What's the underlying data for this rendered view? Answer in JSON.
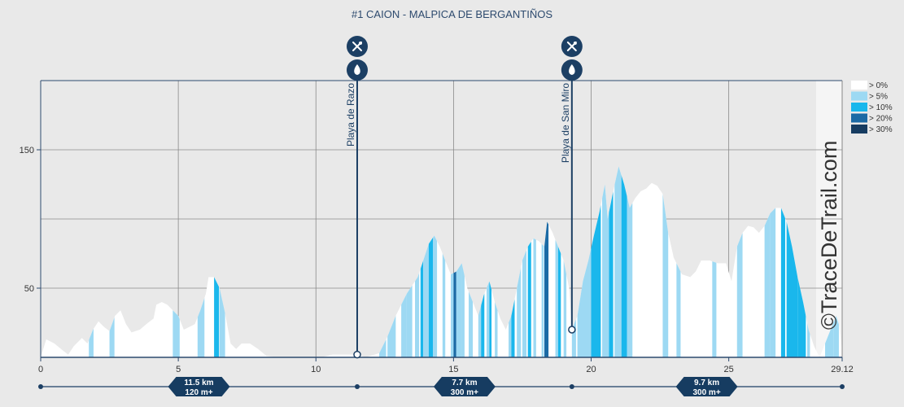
{
  "chart_data": {
    "type": "area",
    "title": "#1 CAION - MALPICA DE BERGANTIÑOS",
    "xlabel": "",
    "ylabel": "",
    "xlim": [
      0,
      29.12
    ],
    "ylim": [
      0,
      200
    ],
    "x_ticks": [
      {
        "value": 0,
        "label": "0"
      },
      {
        "value": 5,
        "label": "5"
      },
      {
        "value": 10,
        "label": "10"
      },
      {
        "value": 15,
        "label": "15"
      },
      {
        "value": 20,
        "label": "20"
      },
      {
        "value": 25,
        "label": "25"
      },
      {
        "value": 29.12,
        "label": "29.12"
      }
    ],
    "y_ticks": [
      {
        "value": 50,
        "label": "50"
      },
      {
        "value": 150,
        "label": "150"
      }
    ],
    "grid": true,
    "profile": [
      [
        0,
        0
      ],
      [
        0.2,
        13
      ],
      [
        0.5,
        10
      ],
      [
        0.8,
        5
      ],
      [
        1.0,
        2
      ],
      [
        1.2,
        8
      ],
      [
        1.5,
        14
      ],
      [
        1.7,
        10
      ],
      [
        1.9,
        20
      ],
      [
        2.1,
        26
      ],
      [
        2.3,
        22
      ],
      [
        2.5,
        19
      ],
      [
        2.7,
        30
      ],
      [
        2.9,
        34
      ],
      [
        3.1,
        24
      ],
      [
        3.3,
        18
      ],
      [
        3.6,
        20
      ],
      [
        3.9,
        25
      ],
      [
        4.1,
        28
      ],
      [
        4.2,
        38
      ],
      [
        4.4,
        40
      ],
      [
        4.6,
        38
      ],
      [
        4.8,
        34
      ],
      [
        5.0,
        30
      ],
      [
        5.2,
        20
      ],
      [
        5.4,
        22
      ],
      [
        5.6,
        24
      ],
      [
        5.8,
        34
      ],
      [
        6.0,
        46
      ],
      [
        6.1,
        58
      ],
      [
        6.3,
        58
      ],
      [
        6.5,
        50
      ],
      [
        6.7,
        32
      ],
      [
        6.9,
        10
      ],
      [
        7.1,
        6
      ],
      [
        7.3,
        10
      ],
      [
        7.6,
        10
      ],
      [
        7.9,
        6
      ],
      [
        8.2,
        1
      ],
      [
        8.6,
        0
      ],
      [
        9.5,
        0
      ],
      [
        10.2,
        0
      ],
      [
        10.6,
        2
      ],
      [
        11.0,
        2
      ],
      [
        11.5,
        2
      ],
      [
        11.8,
        0
      ],
      [
        12.3,
        3
      ],
      [
        12.6,
        15
      ],
      [
        12.9,
        30
      ],
      [
        13.1,
        38
      ],
      [
        13.3,
        46
      ],
      [
        13.5,
        52
      ],
      [
        13.7,
        58
      ],
      [
        13.9,
        70
      ],
      [
        14.1,
        82
      ],
      [
        14.3,
        88
      ],
      [
        14.5,
        80
      ],
      [
        14.7,
        70
      ],
      [
        14.9,
        60
      ],
      [
        15.1,
        62
      ],
      [
        15.3,
        68
      ],
      [
        15.5,
        50
      ],
      [
        15.7,
        40
      ],
      [
        15.9,
        30
      ],
      [
        16.1,
        45
      ],
      [
        16.3,
        55
      ],
      [
        16.5,
        40
      ],
      [
        16.7,
        28
      ],
      [
        16.9,
        20
      ],
      [
        17.1,
        30
      ],
      [
        17.3,
        50
      ],
      [
        17.5,
        70
      ],
      [
        17.7,
        80
      ],
      [
        17.9,
        86
      ],
      [
        18.1,
        84
      ],
      [
        18.3,
        80
      ],
      [
        18.4,
        98
      ],
      [
        18.6,
        90
      ],
      [
        18.8,
        80
      ],
      [
        19.0,
        70
      ],
      [
        19.2,
        50
      ],
      [
        19.3,
        20
      ],
      [
        19.5,
        30
      ],
      [
        19.7,
        55
      ],
      [
        19.9,
        70
      ],
      [
        20.1,
        88
      ],
      [
        20.3,
        105
      ],
      [
        20.5,
        125
      ],
      [
        20.6,
        100
      ],
      [
        20.8,
        120
      ],
      [
        21.0,
        138
      ],
      [
        21.2,
        125
      ],
      [
        21.4,
        108
      ],
      [
        21.6,
        115
      ],
      [
        21.8,
        120
      ],
      [
        22.0,
        122
      ],
      [
        22.2,
        126
      ],
      [
        22.4,
        124
      ],
      [
        22.6,
        118
      ],
      [
        22.8,
        90
      ],
      [
        23.0,
        72
      ],
      [
        23.3,
        60
      ],
      [
        23.6,
        58
      ],
      [
        23.8,
        62
      ],
      [
        24.0,
        70
      ],
      [
        24.3,
        70
      ],
      [
        24.6,
        68
      ],
      [
        24.9,
        68
      ],
      [
        25.1,
        55
      ],
      [
        25.3,
        80
      ],
      [
        25.5,
        90
      ],
      [
        25.7,
        95
      ],
      [
        25.9,
        94
      ],
      [
        26.1,
        90
      ],
      [
        26.3,
        95
      ],
      [
        26.5,
        104
      ],
      [
        26.7,
        108
      ],
      [
        26.9,
        108
      ],
      [
        27.1,
        98
      ],
      [
        27.3,
        80
      ],
      [
        27.5,
        58
      ],
      [
        27.7,
        40
      ],
      [
        27.9,
        20
      ],
      [
        28.1,
        8
      ],
      [
        28.3,
        0
      ],
      [
        28.5,
        10
      ],
      [
        28.7,
        20
      ],
      [
        28.9,
        30
      ],
      [
        29.0,
        24
      ],
      [
        29.12,
        5
      ]
    ],
    "gradient_classes": [
      {
        "label": "> 0%",
        "color": "#ffffff"
      },
      {
        "label": "> 5%",
        "color": "#9dd9f3"
      },
      {
        "label": "> 10%",
        "color": "#1ab7ec"
      },
      {
        "label": "> 20%",
        "color": "#1b6aa5"
      },
      {
        "label": "> 30%",
        "color": "#163c61"
      }
    ],
    "bands": [
      [
        1.75,
        1.92,
        1
      ],
      [
        2.5,
        2.68,
        1
      ],
      [
        4.8,
        5.05,
        1
      ],
      [
        5.7,
        5.95,
        1
      ],
      [
        6.3,
        6.48,
        2
      ],
      [
        6.5,
        6.7,
        1
      ],
      [
        12.3,
        12.55,
        1
      ],
      [
        12.6,
        12.9,
        1
      ],
      [
        13.1,
        13.3,
        1
      ],
      [
        13.3,
        13.5,
        1
      ],
      [
        13.6,
        13.75,
        1
      ],
      [
        13.8,
        13.9,
        2
      ],
      [
        13.9,
        14.1,
        1
      ],
      [
        14.1,
        14.25,
        2
      ],
      [
        14.25,
        14.4,
        1
      ],
      [
        14.6,
        14.7,
        1
      ],
      [
        14.9,
        15.0,
        1
      ],
      [
        15.0,
        15.1,
        3
      ],
      [
        15.1,
        15.3,
        1
      ],
      [
        15.3,
        15.4,
        1
      ],
      [
        15.55,
        15.7,
        1
      ],
      [
        15.9,
        16.0,
        1
      ],
      [
        16.0,
        16.12,
        2
      ],
      [
        16.2,
        16.3,
        1
      ],
      [
        16.3,
        16.38,
        2
      ],
      [
        16.5,
        16.6,
        1
      ],
      [
        17.0,
        17.1,
        1
      ],
      [
        17.1,
        17.22,
        2
      ],
      [
        17.3,
        17.45,
        1
      ],
      [
        17.5,
        17.65,
        1
      ],
      [
        17.7,
        17.82,
        2
      ],
      [
        17.9,
        18.0,
        1
      ],
      [
        18.2,
        18.28,
        1
      ],
      [
        18.3,
        18.45,
        3
      ],
      [
        18.7,
        18.8,
        1
      ],
      [
        18.8,
        18.9,
        2
      ],
      [
        19.0,
        19.1,
        1
      ],
      [
        19.3,
        19.45,
        1
      ],
      [
        19.5,
        20.0,
        1
      ],
      [
        20.0,
        20.35,
        2
      ],
      [
        20.4,
        20.65,
        1
      ],
      [
        20.65,
        20.8,
        2
      ],
      [
        20.85,
        21.1,
        1
      ],
      [
        21.1,
        21.3,
        2
      ],
      [
        21.3,
        21.5,
        1
      ],
      [
        22.6,
        22.8,
        1
      ],
      [
        23.1,
        23.25,
        1
      ],
      [
        24.4,
        24.55,
        1
      ],
      [
        25.3,
        25.5,
        1
      ],
      [
        26.3,
        26.5,
        1
      ],
      [
        26.5,
        26.7,
        1
      ],
      [
        26.9,
        27.05,
        2
      ],
      [
        27.1,
        27.5,
        2
      ],
      [
        27.5,
        27.8,
        2
      ],
      [
        27.85,
        27.95,
        1
      ],
      [
        28.5,
        28.8,
        1
      ],
      [
        28.8,
        29.0,
        1
      ]
    ],
    "pois": [
      {
        "km": 11.5,
        "label": "Playa de Razo",
        "icons": [
          "utensils-icon",
          "water-drop-icon"
        ]
      },
      {
        "km": 19.3,
        "label": "Playa de San Miro",
        "icons": [
          "utensils-icon",
          "water-drop-icon"
        ]
      }
    ],
    "segments": [
      {
        "km": 5.75,
        "distance": "11.5 km",
        "ascent": "120 m+"
      },
      {
        "km": 15.4,
        "distance": "7.7 km",
        "ascent": "300 m+"
      },
      {
        "km": 24.2,
        "distance": "9.7 km",
        "ascent": "300 m+"
      }
    ],
    "segment_markers": [
      0,
      11.5,
      19.3,
      29.12
    ],
    "watermark": "©TraceDeTrail.com"
  }
}
